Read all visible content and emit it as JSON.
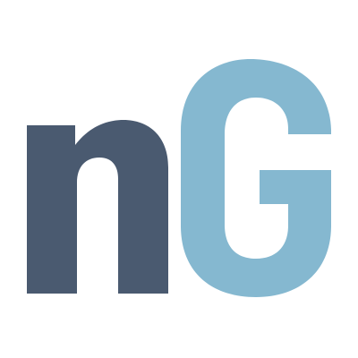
{
  "logo": {
    "text": "nG",
    "colors": {
      "n": "#4a5a70",
      "G": "#85b8d0",
      "background": "#ffffff"
    }
  }
}
